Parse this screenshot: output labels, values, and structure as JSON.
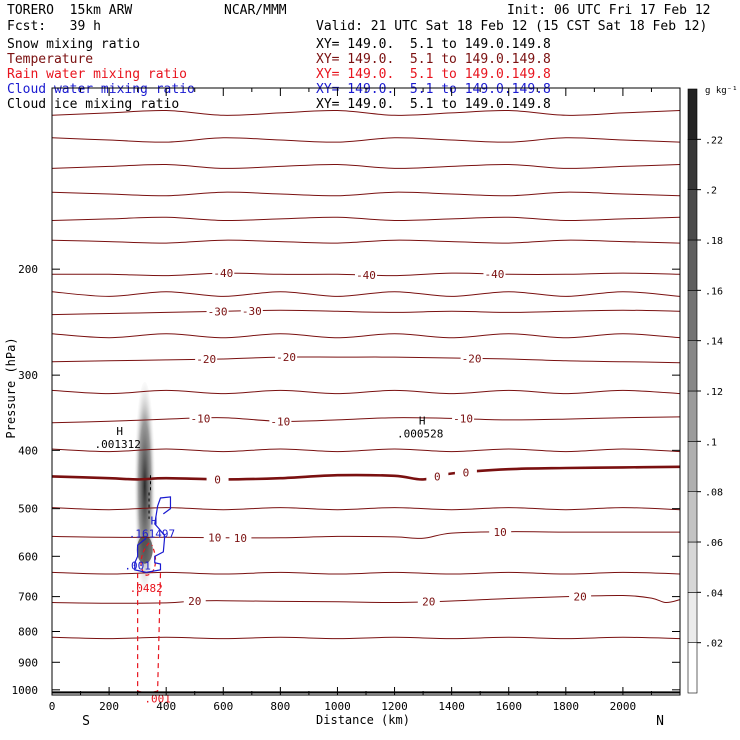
{
  "header": {
    "model": "TORERO  15km ARW",
    "center": "NCAR/MMM",
    "init": "Init: 06 UTC Fri 17 Feb 12",
    "fcst": "Fcst:   39 h",
    "valid": "Valid: 21 UTC Sat 18 Feb 12 (15 CST Sat 18 Feb 12)"
  },
  "legend": {
    "items": [
      {
        "label": "Snow mixing ratio",
        "xy": "XY= 149.0.  5.1 to 149.0.149.8",
        "color": "#000000"
      },
      {
        "label": "Temperature",
        "xy": "XY= 149.0.  5.1 to 149.0.149.8",
        "color": "#7a1010"
      },
      {
        "label": "Rain water mixing ratio",
        "xy": "XY= 149.0.  5.1 to 149.0.149.8",
        "color": "#e8141e"
      },
      {
        "label": "Cloud water mixing ratio",
        "xy": "XY= 149.0.  5.1 to 149.0.149.8",
        "color": "#1a1ad0"
      },
      {
        "label": "Cloud ice mixing ratio",
        "xy": "XY= 149.0.  5.1 to 149.0.149.8",
        "color": "#000000"
      }
    ]
  },
  "chart_data": {
    "type": "cross-section contour",
    "xlabel": "Distance (km)",
    "ylabel": "Pressure (hPa)",
    "x_ticks": [
      0,
      200,
      400,
      600,
      800,
      1000,
      1200,
      1400,
      1600,
      1800,
      2000
    ],
    "y_ticks": [
      200,
      300,
      400,
      500,
      600,
      700,
      800,
      900,
      1000
    ],
    "xlim": [
      0,
      2200
    ],
    "ylim": [
      1020,
      100
    ],
    "y_scale": "log-pressure",
    "x_ends": {
      "left": "S",
      "right": "N"
    },
    "temperature_contours": [
      {
        "value": -40,
        "label": "-40",
        "points": [
          [
            0,
            204
          ],
          [
            200,
            204
          ],
          [
            400,
            205
          ],
          [
            600,
            203
          ],
          [
            800,
            204
          ],
          [
            1000,
            204
          ],
          [
            1200,
            205
          ],
          [
            1400,
            203
          ],
          [
            1600,
            204
          ],
          [
            1800,
            204
          ],
          [
            2000,
            203
          ],
          [
            2200,
            204
          ]
        ],
        "labels_at": [
          600,
          1100,
          1550
        ]
      },
      {
        "value": -30,
        "label": "-30",
        "points": [
          [
            0,
            238
          ],
          [
            200,
            237
          ],
          [
            400,
            236
          ],
          [
            600,
            235
          ],
          [
            800,
            234
          ],
          [
            1000,
            235
          ],
          [
            1200,
            236
          ],
          [
            1400,
            235
          ],
          [
            1600,
            236
          ],
          [
            1800,
            235
          ],
          [
            2000,
            234
          ],
          [
            2200,
            235
          ]
        ],
        "labels_at": [
          580,
          700
        ]
      },
      {
        "value": -20,
        "label": "-20",
        "points": [
          [
            0,
            285
          ],
          [
            200,
            284
          ],
          [
            400,
            283
          ],
          [
            600,
            282
          ],
          [
            800,
            280
          ],
          [
            1000,
            280
          ],
          [
            1200,
            280
          ],
          [
            1400,
            281
          ],
          [
            1600,
            282
          ],
          [
            1800,
            284
          ],
          [
            2000,
            285
          ],
          [
            2200,
            286
          ]
        ],
        "labels_at": [
          540,
          820,
          1470
        ]
      },
      {
        "value": -10,
        "label": "-10",
        "points": [
          [
            0,
            360
          ],
          [
            200,
            358
          ],
          [
            400,
            355
          ],
          [
            600,
            353
          ],
          [
            800,
            358
          ],
          [
            1000,
            356
          ],
          [
            1200,
            353
          ],
          [
            1400,
            354
          ],
          [
            1600,
            356
          ],
          [
            1800,
            355
          ],
          [
            2000,
            353
          ],
          [
            2200,
            352
          ]
        ],
        "labels_at": [
          520,
          800,
          1440
        ]
      },
      {
        "value": 0,
        "label": "0",
        "points": [
          [
            0,
            442
          ],
          [
            200,
            445
          ],
          [
            300,
            447
          ],
          [
            400,
            445
          ],
          [
            600,
            447
          ],
          [
            800,
            445
          ],
          [
            1000,
            440
          ],
          [
            1200,
            441
          ],
          [
            1300,
            447
          ],
          [
            1400,
            437
          ],
          [
            1600,
            430
          ],
          [
            1800,
            428
          ],
          [
            2000,
            427
          ],
          [
            2200,
            426
          ]
        ],
        "labels_at": [
          580,
          1350,
          1450
        ],
        "bold": true
      },
      {
        "value": 10,
        "label": "10",
        "points": [
          [
            0,
            556
          ],
          [
            200,
            558
          ],
          [
            400,
            558
          ],
          [
            600,
            559
          ],
          [
            800,
            559
          ],
          [
            1000,
            556
          ],
          [
            1200,
            557
          ],
          [
            1300,
            560
          ],
          [
            1400,
            549
          ],
          [
            1600,
            546
          ],
          [
            1800,
            547
          ],
          [
            2000,
            547
          ],
          [
            2200,
            547
          ]
        ],
        "labels_at": [
          570,
          660,
          1570
        ]
      },
      {
        "value": 20,
        "label": "20",
        "points": [
          [
            0,
            716
          ],
          [
            200,
            718
          ],
          [
            400,
            717
          ],
          [
            500,
            712
          ],
          [
            600,
            711
          ],
          [
            800,
            713
          ],
          [
            1000,
            714
          ],
          [
            1200,
            716
          ],
          [
            1400,
            712
          ],
          [
            1600,
            705
          ],
          [
            1800,
            700
          ],
          [
            2000,
            697
          ],
          [
            2100,
            704
          ],
          [
            2150,
            716
          ],
          [
            2200,
            708
          ]
        ],
        "labels_at": [
          500,
          1320,
          1850
        ]
      }
    ],
    "max_labels": [
      {
        "field": "snow",
        "marker": "H",
        "value": ".001312",
        "x": 230,
        "p": 380,
        "color": "#000000"
      },
      {
        "field": "snow",
        "marker": "H",
        "value": ".000528",
        "x": 1290,
        "p": 365,
        "color": "#000000"
      },
      {
        "field": "cloud water",
        "marker": "H",
        "value": ".161497",
        "x": 350,
        "p": 535,
        "color": "#1a1ad0"
      },
      {
        "field": "cloud water",
        "marker": "",
        "value": ".001",
        "x": 300,
        "p": 605,
        "color": "#1a1ad0"
      },
      {
        "field": "rain",
        "marker": "",
        "value": ".0482",
        "x": 330,
        "p": 660,
        "color": "#e8141e"
      },
      {
        "field": "rain",
        "marker": "",
        "value": ".001",
        "x": 370,
        "p": 1007,
        "color": "#e8141e"
      }
    ],
    "colorbar": {
      "unit": "g kg⁻¹",
      "ticks": [
        0.02,
        0.04,
        0.06,
        0.08,
        0.1,
        0.12,
        0.14,
        0.16,
        0.18,
        0.2,
        0.22
      ],
      "tick_labels": [
        ".02",
        ".04",
        ".06",
        ".08",
        ".1",
        ".12",
        ".14",
        ".16",
        ".18",
        ".2",
        ".22"
      ],
      "range": [
        0,
        0.24
      ]
    }
  }
}
